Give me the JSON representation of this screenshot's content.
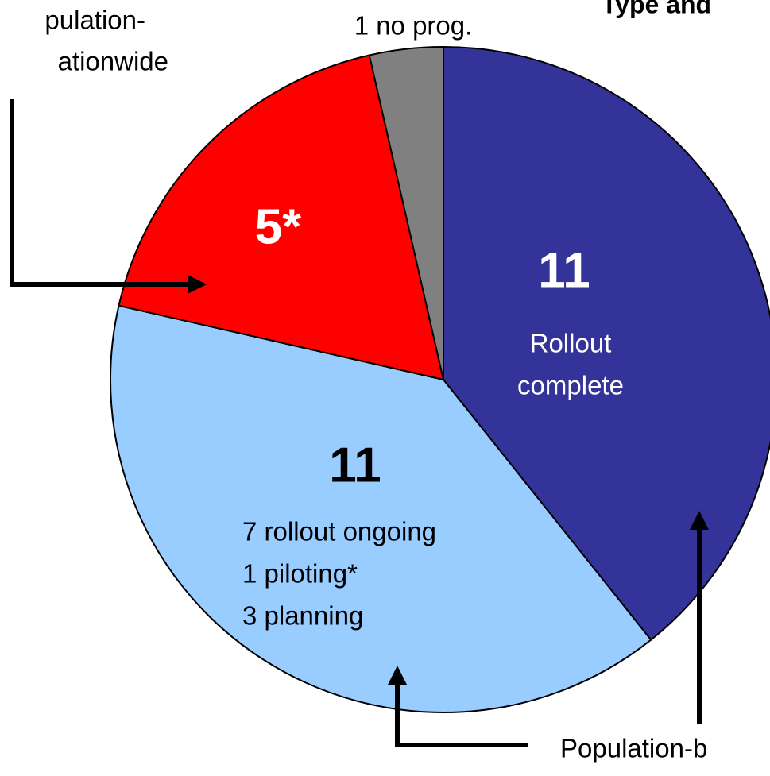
{
  "chart_data": {
    "type": "pie",
    "title": "Type and",
    "values": [
      11,
      11,
      5,
      1
    ],
    "value_labels": [
      "11",
      "11",
      "5*",
      "1 no prog."
    ],
    "colors": [
      "#333399",
      "#99ccff",
      "#ff0000",
      "#808080"
    ],
    "slice_notes": [
      [
        "Rollout",
        "complete"
      ],
      [
        "7 rollout ongoing",
        "1 piloting*",
        "3 planning"
      ],
      [],
      []
    ],
    "annotations": [
      "pulation-",
      "ationwide",
      "Population-b"
    ]
  }
}
